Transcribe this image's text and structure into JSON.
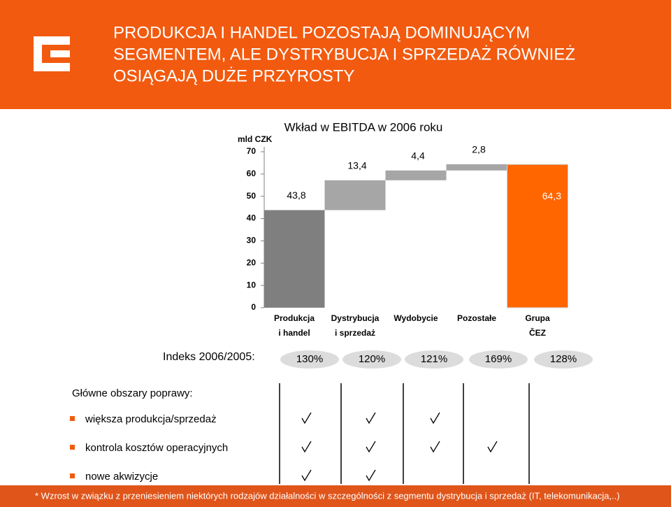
{
  "header": {
    "title_lines": [
      "PRODUKCJA I HANDEL POZOSTAJĄ DOMINUJĄCYM",
      "SEGMENTEM, ALE DYSTRYBUCJA I SPRZEDAŻ RÓWNIEŻ",
      "OSIĄGAJĄ DUŻE PRZYROSTY"
    ]
  },
  "chart_data": {
    "type": "waterfall",
    "title": "Wkład w EBITDA w 2006  roku",
    "y_label": "mld CZK",
    "categories": [
      "Produkcja\ni handel",
      "Dystrybucja\ni sprzedaż",
      "Wydobycie",
      "Pozostałe",
      "Grupa\nČEZ"
    ],
    "values": [
      43.8,
      13.4,
      4.4,
      2.8,
      64.3
    ],
    "value_labels": [
      "43,8",
      "13,4",
      "4,4",
      "2,8",
      "64,3"
    ],
    "totals": [
      false,
      false,
      false,
      false,
      true
    ],
    "colors": [
      "#7f7f7f",
      "#a6a6a6",
      "#a6a6a6",
      "#a6a6a6",
      "#ff6600"
    ],
    "ylim": [
      0,
      70
    ],
    "yticks": [
      0,
      10,
      20,
      30,
      40,
      50,
      60,
      70
    ],
    "grid": false
  },
  "index_row": {
    "label": "Indeks 2006/2005:",
    "items": [
      "130%",
      "120%",
      "121%",
      "169%",
      "128%"
    ]
  },
  "improvements": {
    "heading": "Główne obszary poprawy:",
    "rows": [
      {
        "label": "większa produkcja/sprzedaż",
        "checks": [
          true,
          true,
          true,
          false,
          false
        ]
      },
      {
        "label": "kontrola kosztów operacyjnych",
        "checks": [
          true,
          true,
          true,
          true,
          false
        ]
      },
      {
        "label": "nowe akwizycje",
        "checks": [
          true,
          true,
          false,
          false,
          false
        ]
      }
    ]
  },
  "footnote": "* Wzrost w związku z przeniesieniem niektórych rodzajów działalności w szczególności z segmentu dystrybucja i sprzedaż (IT, telekomunikacja,..)"
}
